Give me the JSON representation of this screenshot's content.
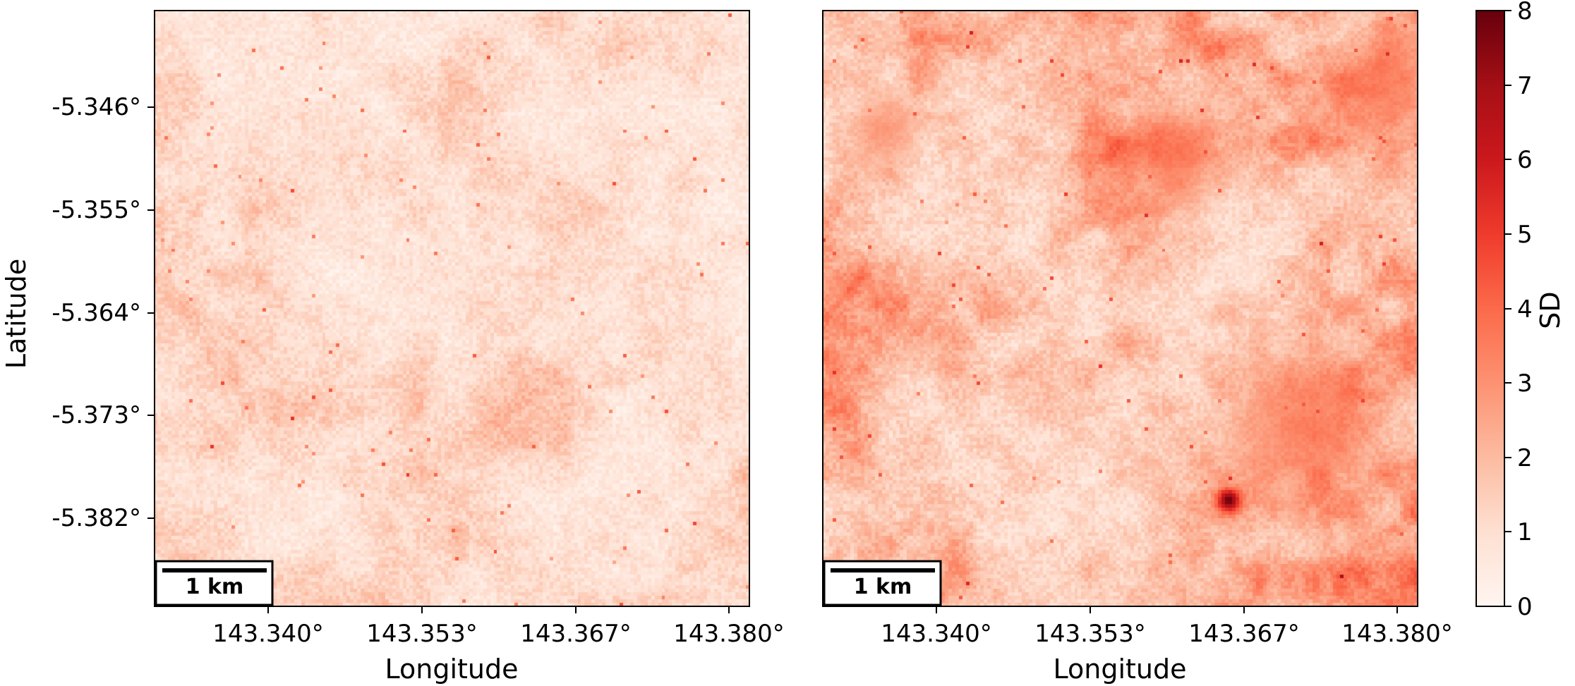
{
  "panels": [
    {
      "id": "left",
      "ylabel": "Latitude",
      "xlabel": "Longitude",
      "xticks": [
        "143.340°",
        "143.353°",
        "143.367°",
        "143.380°"
      ],
      "yticks": [
        "-5.346°",
        "-5.355°",
        "-5.364°",
        "-5.373°",
        "-5.382°"
      ],
      "scalebar": "1 km",
      "seed": 11,
      "base_level": 1.2,
      "hotspots": []
    },
    {
      "id": "right",
      "ylabel": "",
      "xlabel": "Longitude",
      "xticks": [
        "143.340°",
        "143.353°",
        "143.367°",
        "143.380°"
      ],
      "yticks": [],
      "scalebar": "1 km",
      "seed": 29,
      "base_level": 2.1,
      "hotspots": [
        {
          "x": 0.68,
          "y": 0.82,
          "r": 0.02,
          "v": 8.0
        },
        {
          "x": 0.59,
          "y": 0.25,
          "r": 0.08,
          "v": 4.6
        },
        {
          "x": 0.8,
          "y": 0.7,
          "r": 0.12,
          "v": 4.4
        },
        {
          "x": 0.95,
          "y": 0.12,
          "r": 0.09,
          "v": 4.2
        },
        {
          "x": 0.1,
          "y": 0.2,
          "r": 0.06,
          "v": 4.0
        }
      ]
    }
  ],
  "colorbar": {
    "label": "SD",
    "min": 0,
    "max": 8,
    "ticks": [
      "0",
      "1",
      "2",
      "3",
      "4",
      "5",
      "6",
      "7",
      "8"
    ],
    "colors": [
      "#fff5f0",
      "#fee0d2",
      "#fcbba1",
      "#fc9272",
      "#fb6a4a",
      "#ef3b2c",
      "#cb181d",
      "#a50f15",
      "#67000d"
    ]
  }
}
